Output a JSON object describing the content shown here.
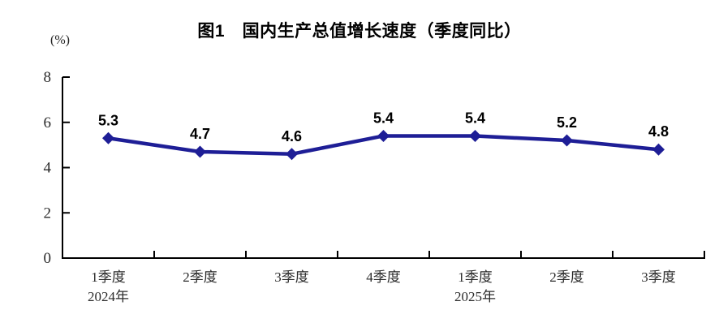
{
  "chart_data": {
    "type": "line",
    "title": "图1　国内生产总值增长速度（季度同比）",
    "unit_label": "(%)",
    "categories": [
      {
        "label": "1季度",
        "year": "2024年"
      },
      {
        "label": "2季度",
        "year": ""
      },
      {
        "label": "3季度",
        "year": ""
      },
      {
        "label": "4季度",
        "year": ""
      },
      {
        "label": "1季度",
        "year": "2025年"
      },
      {
        "label": "2季度",
        "year": ""
      },
      {
        "label": "3季度",
        "year": ""
      }
    ],
    "series": [
      {
        "name": "国内生产总值增长速度",
        "values": [
          5.3,
          4.7,
          4.6,
          5.4,
          5.4,
          5.2,
          4.8
        ]
      }
    ],
    "data_labels": [
      "5.3",
      "4.7",
      "4.6",
      "5.4",
      "5.4",
      "5.2",
      "4.8"
    ],
    "xlabel": "",
    "ylabel": "(%)",
    "ylim": [
      0,
      8
    ],
    "yticks": [
      0,
      2,
      4,
      6,
      8
    ],
    "grid": false,
    "legend": "none",
    "marker": "diamond",
    "colors": {
      "line": "#1e1e96",
      "marker": "#1e1e96",
      "axis": "#000000",
      "tick_text": "#2b2b2b",
      "data_label_text": "#000000",
      "background": "#ffffff"
    }
  }
}
